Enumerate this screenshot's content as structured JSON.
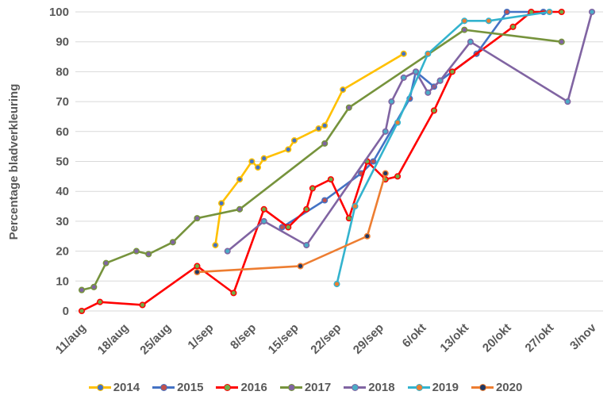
{
  "chart_data": {
    "type": "line",
    "title": "",
    "xlabel": "",
    "ylabel": "Percentage bladverkleuring",
    "ylim": [
      0,
      100
    ],
    "ytick_step": 10,
    "grid": "horizontal-only",
    "legend_position": "bottom",
    "x_axis_start": "11/aug",
    "x_axis_end": "3/nov",
    "x_tick_labels": [
      "11/aug",
      "18/aug",
      "25/aug",
      "1/sep",
      "8/sep",
      "15/sep",
      "22/sep",
      "29/sep",
      "6/okt",
      "13/okt",
      "20/okt",
      "27/okt",
      "3/nov"
    ],
    "colors": {
      "grid": "#D9D9D9",
      "text": "#595959"
    },
    "series": [
      {
        "name": "2014",
        "line_color": "#FFC000",
        "marker_color": "#4472C4",
        "points": [
          [
            "2/sep",
            22
          ],
          [
            "3/sep",
            36
          ],
          [
            "6/sep",
            44
          ],
          [
            "8/sep",
            50
          ],
          [
            "9/sep",
            48
          ],
          [
            "10/sep",
            51
          ],
          [
            "14/sep",
            54
          ],
          [
            "15/sep",
            57
          ],
          [
            "19/sep",
            61
          ],
          [
            "20/sep",
            62
          ],
          [
            "23/sep",
            74
          ],
          [
            "3/okt",
            86
          ]
        ]
      },
      {
        "name": "2015",
        "line_color": "#4472C4",
        "marker_color": "#C0504D",
        "points": [
          [
            "13/sep",
            28
          ],
          [
            "20/sep",
            37
          ],
          [
            "26/sep",
            46
          ],
          [
            "28/sep",
            50
          ],
          [
            "4/okt",
            71
          ],
          [
            "5/okt",
            80
          ],
          [
            "8/okt",
            75
          ],
          [
            "9/okt",
            77
          ],
          [
            "15/okt",
            86
          ],
          [
            "20/okt",
            100
          ],
          [
            "26/okt",
            100
          ]
        ]
      },
      {
        "name": "2016",
        "line_color": "#FF0000",
        "marker_color": "#70AD47",
        "points": [
          [
            "11/aug",
            0
          ],
          [
            "14/aug",
            3
          ],
          [
            "21/aug",
            2
          ],
          [
            "30/aug",
            15
          ],
          [
            "5/sep",
            6
          ],
          [
            "10/sep",
            34
          ],
          [
            "14/sep",
            28
          ],
          [
            "17/sep",
            34
          ],
          [
            "18/sep",
            41
          ],
          [
            "21/sep",
            44
          ],
          [
            "24/sep",
            31
          ],
          [
            "27/sep",
            50
          ],
          [
            "30/sep",
            44
          ],
          [
            "2/okt",
            45
          ],
          [
            "8/okt",
            67
          ],
          [
            "11/okt",
            80
          ],
          [
            "21/okt",
            95
          ],
          [
            "24/okt",
            100
          ],
          [
            "29/okt",
            100
          ]
        ]
      },
      {
        "name": "2017",
        "line_color": "#76933C",
        "marker_color": "#8064A2",
        "points": [
          [
            "11/aug",
            7
          ],
          [
            "13/aug",
            8
          ],
          [
            "15/aug",
            16
          ],
          [
            "20/aug",
            20
          ],
          [
            "22/aug",
            19
          ],
          [
            "26/aug",
            23
          ],
          [
            "30/aug",
            31
          ],
          [
            "6/sep",
            34
          ],
          [
            "20/sep",
            56
          ],
          [
            "24/sep",
            68
          ],
          [
            "13/okt",
            94
          ],
          [
            "29/okt",
            90
          ]
        ]
      },
      {
        "name": "2018",
        "line_color": "#8064A2",
        "marker_color": "#4BACC6",
        "points": [
          [
            "4/sep",
            20
          ],
          [
            "10/sep",
            30
          ],
          [
            "17/sep",
            22
          ],
          [
            "30/sep",
            60
          ],
          [
            "1/okt",
            70
          ],
          [
            "3/okt",
            78
          ],
          [
            "5/okt",
            80
          ],
          [
            "7/okt",
            73
          ],
          [
            "9/okt",
            77
          ],
          [
            "14/okt",
            90
          ],
          [
            "30/okt",
            70
          ],
          [
            "3/nov",
            100
          ]
        ]
      },
      {
        "name": "2019",
        "line_color": "#33B3CE",
        "marker_color": "#ED7D31",
        "points": [
          [
            "22/sep",
            9
          ],
          [
            "25/sep",
            35
          ],
          [
            "2/okt",
            63
          ],
          [
            "7/okt",
            86
          ],
          [
            "13/okt",
            97
          ],
          [
            "17/okt",
            97
          ],
          [
            "27/okt",
            100
          ]
        ]
      },
      {
        "name": "2020",
        "line_color": "#ED7D31",
        "marker_color": "#1F3864",
        "points": [
          [
            "30/aug",
            13
          ],
          [
            "16/sep",
            15
          ],
          [
            "27/sep",
            25
          ],
          [
            "30/sep",
            46
          ]
        ]
      }
    ]
  }
}
